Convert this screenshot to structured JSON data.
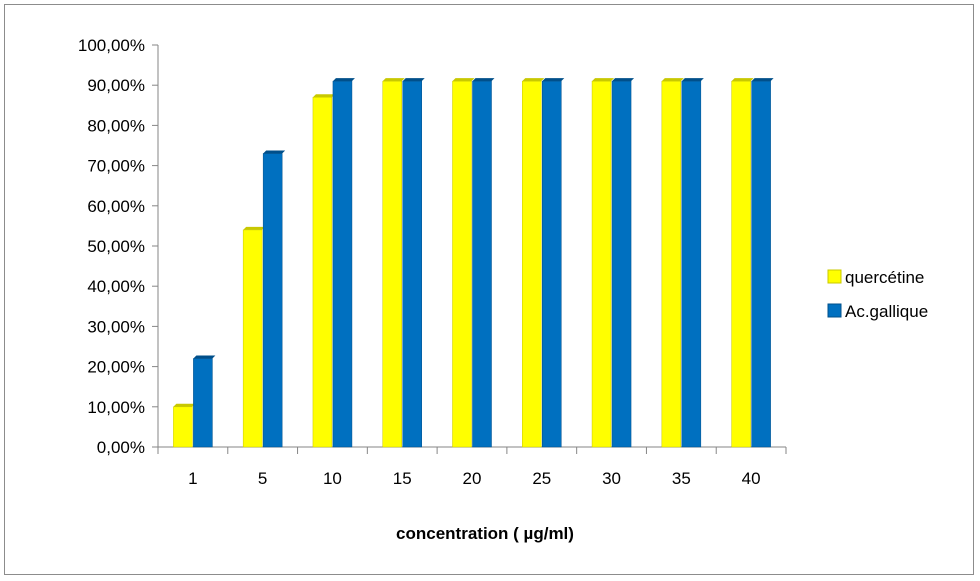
{
  "chart_data": {
    "type": "bar",
    "categories": [
      "1",
      "5",
      "10",
      "15",
      "20",
      "25",
      "30",
      "35",
      "40"
    ],
    "series": [
      {
        "name": "quercétine",
        "values": [
          10,
          54,
          87,
          91,
          91,
          91,
          91,
          91,
          91
        ],
        "color": "#ffff00",
        "shade": "#c8c800"
      },
      {
        "name": "Ac.gallique",
        "values": [
          22,
          73,
          91,
          91,
          91,
          91,
          91,
          91,
          91
        ],
        "color": "#0070c0",
        "shade": "#004f8a"
      }
    ],
    "yticks": [
      "0,00%",
      "10,00%",
      "20,00%",
      "30,00%",
      "40,00%",
      "50,00%",
      "60,00%",
      "70,00%",
      "80,00%",
      "90,00%",
      "100,00%"
    ],
    "ylim": [
      0,
      100
    ],
    "xlabel": "concentration ( µg/ml)",
    "ylabel": "",
    "title": "",
    "grid": false,
    "legend_position": "right"
  }
}
